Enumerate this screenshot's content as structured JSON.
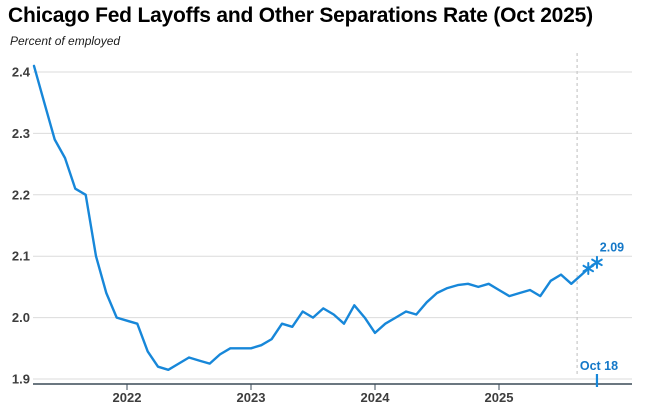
{
  "header": {
    "title": "Chicago Fed Layoffs and Other Separations Rate (Oct 2025)",
    "subtitle": "Percent of employed"
  },
  "chart_data": {
    "type": "line",
    "title": "Chicago Fed Layoffs and Other Separations Rate (Oct 2025)",
    "subtitle": "Percent of employed",
    "ylabel": "Percent of employed",
    "xlabel": "",
    "legend": "none",
    "grid": "horizontal",
    "colors": {
      "line": "#1787d9",
      "annotation_text": "#1478c8",
      "axis": "#3a4a57",
      "gridline": "#dbdbdb",
      "dashed_reference": "#cccccc",
      "tick_label": "#3d3d3d"
    },
    "axes": {
      "x_ticks": [
        2022,
        2023,
        2024,
        2025
      ],
      "y_ticks": [
        2.4,
        2.3,
        2.2,
        2.1,
        2.0,
        1.9
      ],
      "y_range": [
        1.9,
        2.42
      ],
      "x_range_years": [
        2021.24,
        2026.06
      ]
    },
    "series": [
      {
        "name": "Layoffs and other separations rate",
        "color": "#1787d9",
        "points": [
          [
            "2021-04",
            2.41
          ],
          [
            "2021-05",
            2.35
          ],
          [
            "2021-06",
            2.29
          ],
          [
            "2021-07",
            2.26
          ],
          [
            "2021-08",
            2.21
          ],
          [
            "2021-09",
            2.2
          ],
          [
            "2021-10",
            2.1
          ],
          [
            "2021-11",
            2.04
          ],
          [
            "2021-12",
            2.0
          ],
          [
            "2022-01",
            1.995
          ],
          [
            "2022-02",
            1.99
          ],
          [
            "2022-03",
            1.945
          ],
          [
            "2022-04",
            1.92
          ],
          [
            "2022-05",
            1.915
          ],
          [
            "2022-06",
            1.925
          ],
          [
            "2022-07",
            1.935
          ],
          [
            "2022-08",
            1.93
          ],
          [
            "2022-09",
            1.925
          ],
          [
            "2022-10",
            1.94
          ],
          [
            "2022-11",
            1.95
          ],
          [
            "2022-12",
            1.95
          ],
          [
            "2023-01",
            1.95
          ],
          [
            "2023-02",
            1.955
          ],
          [
            "2023-03",
            1.965
          ],
          [
            "2023-04",
            1.99
          ],
          [
            "2023-05",
            1.985
          ],
          [
            "2023-06",
            2.01
          ],
          [
            "2023-07",
            2.0
          ],
          [
            "2023-08",
            2.015
          ],
          [
            "2023-09",
            2.005
          ],
          [
            "2023-10",
            1.99
          ],
          [
            "2023-11",
            2.02
          ],
          [
            "2023-12",
            2.0
          ],
          [
            "2024-01",
            1.975
          ],
          [
            "2024-02",
            1.99
          ],
          [
            "2024-03",
            2.0
          ],
          [
            "2024-04",
            2.01
          ],
          [
            "2024-05",
            2.005
          ],
          [
            "2024-06",
            2.025
          ],
          [
            "2024-07",
            2.04
          ],
          [
            "2024-08",
            2.048
          ],
          [
            "2024-09",
            2.053
          ],
          [
            "2024-10",
            2.055
          ],
          [
            "2024-11",
            2.05
          ],
          [
            "2024-12",
            2.055
          ],
          [
            "2025-01",
            2.045
          ],
          [
            "2025-02",
            2.035
          ],
          [
            "2025-03",
            2.04
          ],
          [
            "2025-04",
            2.045
          ],
          [
            "2025-05",
            2.035
          ],
          [
            "2025-06",
            2.06
          ],
          [
            "2025-07",
            2.07
          ],
          [
            "2025-08",
            2.055
          ],
          [
            "2025-09",
            2.07
          ]
        ]
      }
    ],
    "preliminary": {
      "marker": "asterisk",
      "points": [
        {
          "x_year": 2025.72,
          "value": 2.08
        },
        {
          "x_year": 2025.79,
          "value": 2.09
        }
      ]
    },
    "annotations": {
      "last_value_label": "2.09",
      "date_marker_label": "Oct 18",
      "date_marker_x_year": 2025.79,
      "dashed_vline_x_year": 2025.63
    }
  }
}
